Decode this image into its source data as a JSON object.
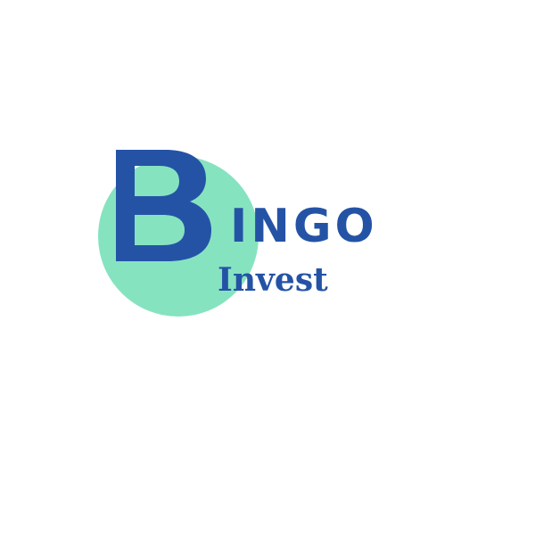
{
  "logo": {
    "initial": "B",
    "word_rest": "INGO",
    "tagline": "Invest",
    "colors": {
      "primary": "#2453a6",
      "circle": "#86e3c0",
      "background": "#ffffff"
    }
  }
}
